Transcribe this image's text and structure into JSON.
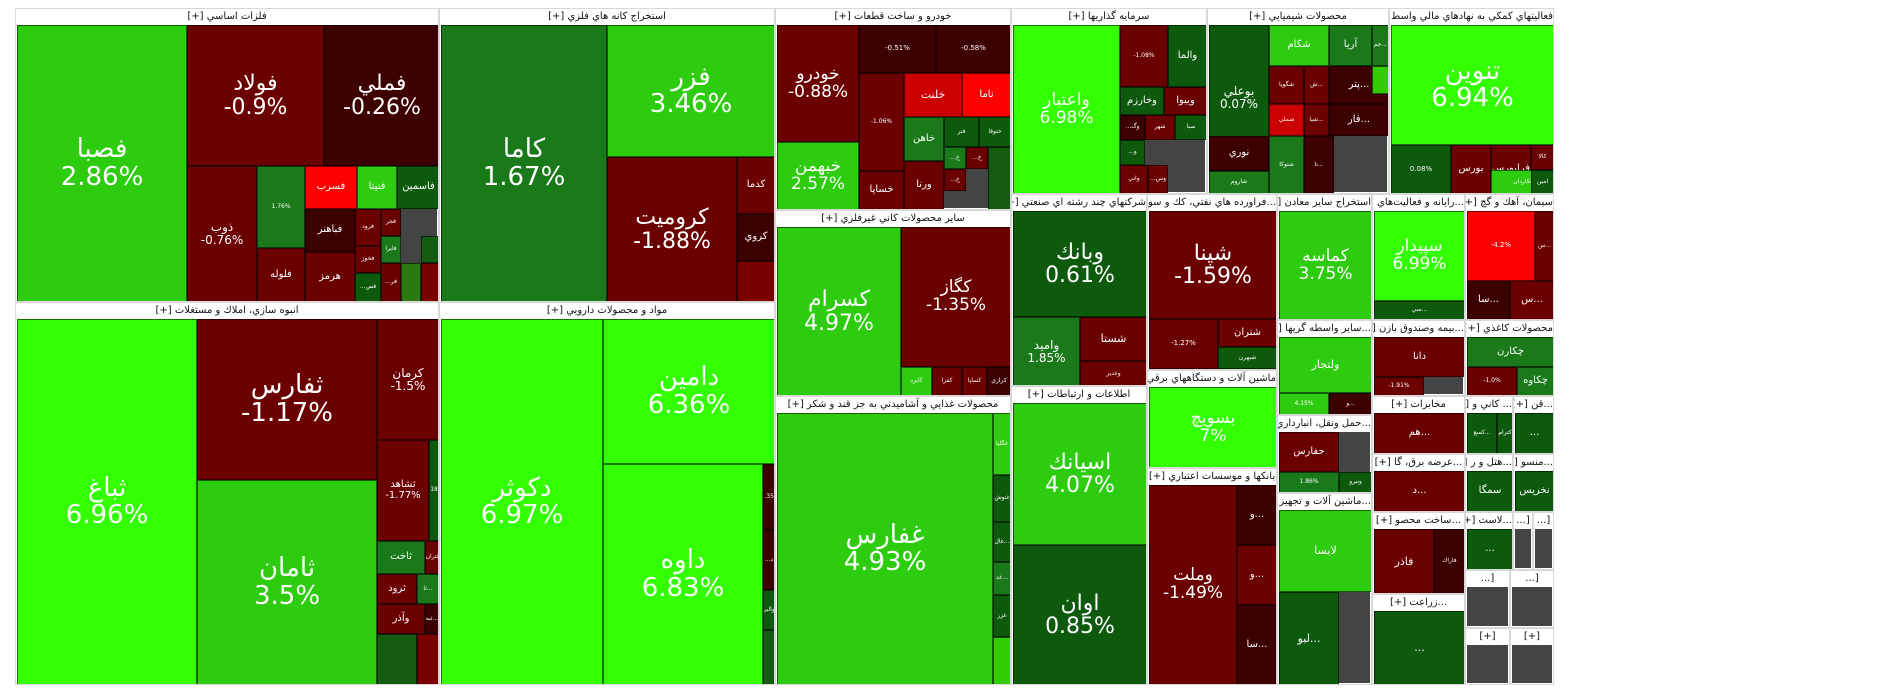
{
  "colors": {
    "up_strong": "#33ff00",
    "up_mid": "#2ecc0f",
    "up_weak": "#1a7a1a",
    "up_faint": "#0d5a0d",
    "down_faint": "#3d0000",
    "down_mid": "#6b0000",
    "down_strong": "#cc0000",
    "down_max": "#ff0000"
  },
  "chart_data": {
    "type": "treemap",
    "sectors": [
      {
        "name": "فلزات اساسي [+]",
        "tiles": [
          {
            "symbol": "فصبا",
            "change": "2.86%",
            "value": 2.86
          },
          {
            "symbol": "فولاد",
            "change": "-0.9%",
            "value": -0.9
          },
          {
            "symbol": "فملي",
            "change": "-0.26%",
            "value": -0.26
          },
          {
            "symbol": "ذوب",
            "change": "-0.76%",
            "value": -0.76
          },
          {
            "symbol": "",
            "change": "1.76%",
            "value": 1.76
          },
          {
            "symbol": "فسرب",
            "change": "",
            "value": -4.5
          },
          {
            "symbol": "فنيتا",
            "change": "",
            "value": 3.2
          },
          {
            "symbol": "فاسمين",
            "change": "",
            "value": 0.6
          },
          {
            "symbol": "فباهنر",
            "change": "",
            "value": -0.6
          },
          {
            "symbol": "فرود",
            "change": "",
            "value": -1.6
          },
          {
            "symbol": "فجر",
            "change": "",
            "value": -2.3
          },
          {
            "symbol": "فلوله",
            "change": "",
            "value": -1.5
          },
          {
            "symbol": "فخوز",
            "change": "",
            "value": -1.2
          },
          {
            "symbol": "فايرا",
            "change": "",
            "value": 2.0
          },
          {
            "symbol": "هرمز",
            "change": "",
            "value": -2.0
          },
          {
            "symbol": "فس...",
            "change": "",
            "value": 0.5
          },
          {
            "symbol": "فر...",
            "change": "",
            "value": -1.5
          }
        ]
      },
      {
        "name": "استخراج كانه هاي فلزي [+]",
        "tiles": [
          {
            "symbol": "كاما",
            "change": "1.67%",
            "value": 1.67
          },
          {
            "symbol": "فزر",
            "change": "3.46%",
            "value": 3.46
          },
          {
            "symbol": "كروميت",
            "change": "-1.88%",
            "value": -1.88
          },
          {
            "symbol": "كدما",
            "change": "",
            "value": -0.8
          },
          {
            "symbol": "كروي",
            "change": "",
            "value": -0.3
          }
        ]
      },
      {
        "name": "خودرو و ساخت قطعات [+]",
        "tiles": [
          {
            "symbol": "خودرو",
            "change": "-0.88%",
            "value": -0.88
          },
          {
            "symbol": "",
            "change": "-0.51%",
            "value": -0.51
          },
          {
            "symbol": "",
            "change": "-0.58%",
            "value": -0.58
          },
          {
            "symbol": "خلنت",
            "change": "",
            "value": -2.6
          },
          {
            "symbol": "ناما",
            "change": "",
            "value": -4.0
          },
          {
            "symbol": "",
            "change": "-1.06%",
            "value": -1.06
          },
          {
            "symbol": "خاهن",
            "change": "",
            "value": 1.0
          },
          {
            "symbol": "فنر",
            "change": "",
            "value": 0.4
          },
          {
            "symbol": "ختوقا",
            "change": "",
            "value": 0.3
          },
          {
            "symbol": "خبهمن",
            "change": "2.57%",
            "value": 2.57
          },
          {
            "symbol": "خساپا",
            "change": "",
            "value": -1.0
          },
          {
            "symbol": "ورنا",
            "change": "",
            "value": -1.2
          },
          {
            "symbol": "خ...",
            "change": "",
            "value": 2.0
          },
          {
            "symbol": "خ...",
            "change": "",
            "value": -1.0
          },
          {
            "symbol": "خ...",
            "change": "",
            "value": -2.0
          }
        ]
      },
      {
        "name": "سرمايه گذاريها [+]",
        "tiles": [
          {
            "symbol": "واعتبار",
            "change": "6.98%",
            "value": 6.98
          },
          {
            "symbol": "",
            "change": "-1.08%",
            "value": -1.08
          },
          {
            "symbol": "والما",
            "change": "",
            "value": 0.4
          },
          {
            "symbol": "وخارزم",
            "change": "",
            "value": 0.3
          },
          {
            "symbol": "ويبوا",
            "change": "",
            "value": -0.8
          },
          {
            "symbol": "وگ...",
            "change": "",
            "value": -0.3
          },
          {
            "symbol": "شهر",
            "change": "",
            "value": -1.2
          },
          {
            "symbol": "صبا",
            "change": "",
            "value": 0.5
          },
          {
            "symbol": "و...",
            "change": "",
            "value": 0.3
          },
          {
            "symbol": "واتي",
            "change": "",
            "value": -1.0
          },
          {
            "symbol": "وس...",
            "change": "",
            "value": -2.0
          }
        ]
      },
      {
        "name": "محصولات شيميايي [+]",
        "tiles": [
          {
            "symbol": "بوعلي",
            "change": "0.07%",
            "value": 0.07
          },
          {
            "symbol": "شكام",
            "change": "",
            "value": 3.0
          },
          {
            "symbol": "آريا",
            "change": "",
            "value": 1.5
          },
          {
            "symbol": "...جم",
            "change": "",
            "value": 2.0
          },
          {
            "symbol": "شگويا",
            "change": "",
            "value": -0.7
          },
          {
            "symbol": "...ش",
            "change": "",
            "value": -1.0
          },
          {
            "symbol": "...پتر",
            "change": "",
            "value": -0.6
          },
          {
            "symbol": "شملي",
            "change": "",
            "value": -3.5
          },
          {
            "symbol": "...شيا",
            "change": "",
            "value": -0.8
          },
          {
            "symbol": "...فار",
            "change": "",
            "value": -0.4
          },
          {
            "symbol": "شاروم",
            "change": "",
            "value": 1.2
          },
          {
            "symbol": "...تا",
            "change": "",
            "value": -0.5
          },
          {
            "symbol": "نوري",
            "change": "",
            "value": -0.5
          },
          {
            "symbol": "شتوكا",
            "change": "",
            "value": 1.0
          }
        ]
      },
      {
        "name": "فعاليتهاي كمكي به نهادهاي مالي واسط [+]",
        "tiles": [
          {
            "symbol": "تنوين",
            "change": "6.94%",
            "value": 6.94
          },
          {
            "symbol": "",
            "change": "0.08%",
            "value": 0.08
          },
          {
            "symbol": "بورس",
            "change": "",
            "value": -0.8
          },
          {
            "symbol": "فرابورس",
            "change": "",
            "value": -1.0
          },
          {
            "symbol": "كالا",
            "change": "",
            "value": -0.8
          },
          {
            "symbol": "تكاردان",
            "change": "",
            "value": 2.5
          },
          {
            "symbol": "امين",
            "change": "",
            "value": 0.4
          }
        ]
      },
      {
        "name": "انبوه سازي، املاك و مستغلات [+]",
        "tiles": [
          {
            "symbol": "ثباغ",
            "change": "6.96%",
            "value": 6.96
          },
          {
            "symbol": "ثفارس",
            "change": "-1.17%",
            "value": -1.17
          },
          {
            "symbol": "كرمان",
            "change": "-1.5%",
            "value": -1.5
          },
          {
            "symbol": "ثامان",
            "change": "3.5%",
            "value": 3.5
          },
          {
            "symbol": "ثشاهد",
            "change": "-1.77%",
            "value": -1.77
          },
          {
            "symbol": "",
            "change": "0.18%",
            "value": 0.18
          },
          {
            "symbol": "ثاخت",
            "change": "",
            "value": 1.2
          },
          {
            "symbol": "ثتران",
            "change": "",
            "value": -1.0
          },
          {
            "symbol": "ثرود",
            "change": "",
            "value": -0.8
          },
          {
            "symbol": "...ثا",
            "change": "",
            "value": 2.0
          },
          {
            "symbol": "وآذر",
            "change": "",
            "value": -0.8
          },
          {
            "symbol": "...ثبه",
            "change": "",
            "value": -0.6
          }
        ]
      },
      {
        "name": "مواد و محصولات دارويي [+]",
        "tiles": [
          {
            "symbol": "دكوثر",
            "change": "6.97%",
            "value": 6.97
          },
          {
            "symbol": "دامين",
            "change": "6.36%",
            "value": 6.36
          },
          {
            "symbol": "داوه",
            "change": "6.83%",
            "value": 6.83
          },
          {
            "symbol": "",
            "change": "-0.35%",
            "value": -0.35
          },
          {
            "symbol": "د...",
            "change": "",
            "value": -0.6
          },
          {
            "symbol": "والبر",
            "change": "",
            "value": 0.8
          }
        ]
      },
      {
        "name": "ساير محصولات كاني غيرفلزي [+]",
        "tiles": [
          {
            "symbol": "كسرام",
            "change": "4.97%",
            "value": 4.97
          },
          {
            "symbol": "كگاز",
            "change": "-1.35%",
            "value": -1.35
          },
          {
            "symbol": "كايزد",
            "change": "",
            "value": 2.5
          },
          {
            "symbol": "كفرا",
            "change": "",
            "value": -0.8
          },
          {
            "symbol": "كساپا",
            "change": "",
            "value": -1.0
          },
          {
            "symbol": "كرازي",
            "change": "",
            "value": -0.5
          }
        ]
      },
      {
        "name": "محصولات غذايي و آشاميدني به جز قند و شكر [+]",
        "tiles": [
          {
            "symbol": "غفارس",
            "change": "4.93%",
            "value": 4.93
          },
          {
            "symbol": "غگلپا",
            "change": "",
            "value": 2.5
          },
          {
            "symbol": "غنوش",
            "change": "",
            "value": 0.5
          },
          {
            "symbol": "...غال",
            "change": "",
            "value": 0.4
          },
          {
            "symbol": "...غد",
            "change": "",
            "value": 1.5
          },
          {
            "symbol": "غزر",
            "change": "",
            "value": 0.3
          },
          {
            "symbol": "...غ",
            "change": "",
            "value": -1.0
          }
        ]
      },
      {
        "name": "شركتهاي چند رشته اي صنعتي [+]",
        "tiles": [
          {
            "symbol": "وبانك",
            "change": "0.61%",
            "value": 0.61
          },
          {
            "symbol": "وامید",
            "change": "1.85%",
            "value": 1.85
          },
          {
            "symbol": "شستا",
            "change": "",
            "value": -1.1
          },
          {
            "symbol": "وغدير",
            "change": "",
            "value": -0.8
          }
        ]
      },
      {
        "name": "...فراورده هاي نفتي، كك و سو [+]",
        "tiles": [
          {
            "symbol": "شپنا",
            "change": "-1.59%",
            "value": -1.59
          },
          {
            "symbol": "",
            "change": "-1.27%",
            "value": -1.27
          },
          {
            "symbol": "شتران",
            "change": "",
            "value": -0.8
          },
          {
            "symbol": "شبهرن",
            "change": "",
            "value": 0.4
          }
        ]
      },
      {
        "name": "اطلاعات و ارتباطات [+]",
        "tiles": [
          {
            "symbol": "اسيانك",
            "change": "4.07%",
            "value": 4.07
          },
          {
            "symbol": "اوان",
            "change": "0.85%",
            "value": 0.85
          }
        ]
      },
      {
        "name": "ماشين آلات و دستگاههاي برقي [+]",
        "tiles": [
          {
            "symbol": "بسويچ",
            "change": "7%",
            "value": 7.0
          }
        ]
      },
      {
        "name": "بانكها و موسسات اعتباري [+]",
        "tiles": [
          {
            "symbol": "وملت",
            "change": "-1.49%",
            "value": -1.49
          },
          {
            "symbol": "...و",
            "change": "",
            "value": -0.6
          },
          {
            "symbol": "...و",
            "change": "",
            "value": -0.7
          },
          {
            "symbol": "...سا",
            "change": "",
            "value": -0.5
          }
        ]
      },
      {
        "name": "استخراج ساير معادن [+]",
        "tiles": [
          {
            "symbol": "كماسه",
            "change": "3.75%",
            "value": 3.75
          }
        ]
      },
      {
        "name": "...رايانه و فعاليت‌هاي [+]",
        "tiles": [
          {
            "symbol": "سپيدار",
            "change": "6.99%",
            "value": 6.99
          },
          {
            "symbol": "...سي",
            "change": "",
            "value": 0.5
          }
        ]
      },
      {
        "name": "سيمان، آهك و گچ [+]",
        "tiles": [
          {
            "symbol": "",
            "change": "-4.2%",
            "value": -4.2
          },
          {
            "symbol": "...س",
            "change": "",
            "value": -0.7
          },
          {
            "symbol": "...سا",
            "change": "",
            "value": -0.6
          },
          {
            "symbol": "...س",
            "change": "",
            "value": -0.9
          }
        ]
      },
      {
        "name": "...ساير واسطه گريها [+]",
        "tiles": [
          {
            "symbol": "ولتجار",
            "change": "",
            "value": 2.5
          },
          {
            "symbol": "",
            "change": "4.15%",
            "value": 4.15
          },
          {
            "symbol": "...ول",
            "change": "",
            "value": -0.8
          },
          {
            "symbol": "...و",
            "change": "",
            "value": -0.5
          }
        ]
      },
      {
        "name": "...بيمه وصندوق بازن [+]",
        "tiles": [
          {
            "symbol": "دانا",
            "change": "",
            "value": -1.2
          },
          {
            "symbol": "",
            "change": "-1.91%",
            "value": -1.91
          }
        ]
      },
      {
        "name": "محصولات كاغذي [+]",
        "tiles": [
          {
            "symbol": "چكارن",
            "change": "",
            "value": 1.5
          },
          {
            "symbol": "",
            "change": "-1.0%",
            "value": -1.0
          },
          {
            "symbol": "چكاوه",
            "change": "",
            "value": 1.8
          }
        ]
      },
      {
        "name": "...حمل ونقل، انبارداري [+]",
        "tiles": [
          {
            "symbol": "حفارس",
            "change": "",
            "value": -0.8
          },
          {
            "symbol": "",
            "change": "1.86%",
            "value": 1.86
          },
          {
            "symbol": "ونيرو",
            "change": "",
            "value": 0.5
          }
        ]
      },
      {
        "name": "مخابرات [+]",
        "tiles": [
          {
            "symbol": "...هم",
            "change": "",
            "value": -0.9
          }
        ]
      },
      {
        "name": "... كاني و [+]",
        "tiles": [
          {
            "symbol": "...كسع",
            "change": "",
            "value": 0.6
          },
          {
            "symbol": "كترام",
            "change": "",
            "value": 0.8
          }
        ]
      },
      {
        "name": "...قن [+]",
        "tiles": [
          {
            "symbol": "...",
            "change": "",
            "value": 0.2
          }
        ]
      },
      {
        "name": "...عرضه برق، گا [+]",
        "tiles": [
          {
            "symbol": "...د",
            "change": "",
            "value": -0.7
          }
        ]
      },
      {
        "name": "...هتل و ر [+]",
        "tiles": [
          {
            "symbol": "سمگا",
            "change": "",
            "value": 0.4
          }
        ]
      },
      {
        "name": "...منسو [+]",
        "tiles": [
          {
            "symbol": "نخريس",
            "change": "",
            "value": 0.3
          }
        ]
      },
      {
        "name": "...ماشين آلات و تجهيز [+]",
        "tiles": [
          {
            "symbol": "لابسا",
            "change": "",
            "value": 2.5
          },
          {
            "symbol": "...لبو",
            "change": "",
            "value": 0.5
          }
        ]
      },
      {
        "name": "...لاست [+]",
        "tiles": [
          {
            "symbol": "...",
            "change": "",
            "value": 0.3
          }
        ]
      },
      {
        "name": "...ساخت محصو [+]",
        "tiles": [
          {
            "symbol": "فاذر",
            "change": "",
            "value": -0.8
          },
          {
            "symbol": "فاراك",
            "change": "",
            "value": -0.5
          }
        ]
      },
      {
        "name": "...زراعت [+]",
        "tiles": [
          {
            "symbol": "...",
            "change": "",
            "value": 0.2
          }
        ]
      },
      {
        "name": "[...",
        "tiles": []
      },
      {
        "name": "[...",
        "tiles": []
      },
      {
        "name": "[...",
        "tiles": []
      },
      {
        "name": "[...",
        "tiles": []
      },
      {
        "name": "[+]",
        "tiles": []
      },
      {
        "name": "[+]",
        "tiles": []
      }
    ]
  }
}
